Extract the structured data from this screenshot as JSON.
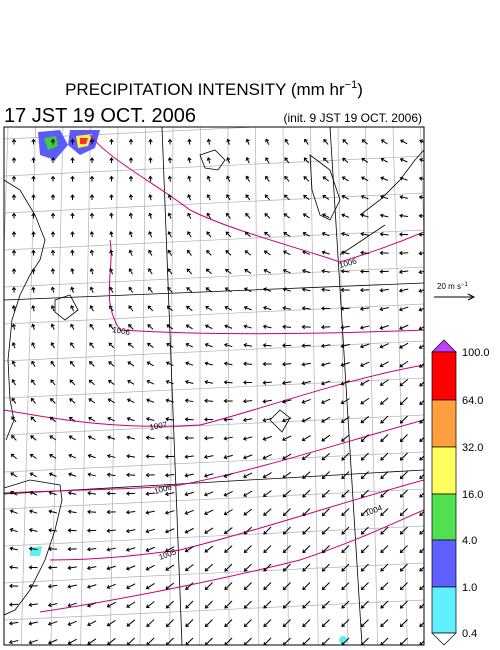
{
  "title": {
    "text": "PRECIPITATION INTENSITY (mm hr",
    "exponent": "−1",
    "close": ")"
  },
  "subtitle": {
    "valid_time": "17 JST 19 OCT. 2006",
    "init_time": "(init. 9 JST 19 OCT. 2006)"
  },
  "wind_reference": {
    "text": "20 m s",
    "exponent": "−1"
  },
  "colorbar_labels": [
    "100.0",
    "64.0",
    "32.0",
    "16.0",
    "4.0",
    "1.0",
    "0.4"
  ],
  "isobar_labels": [
    "1006",
    "1006",
    "1007",
    "1006",
    "1005",
    "1004"
  ]
}
